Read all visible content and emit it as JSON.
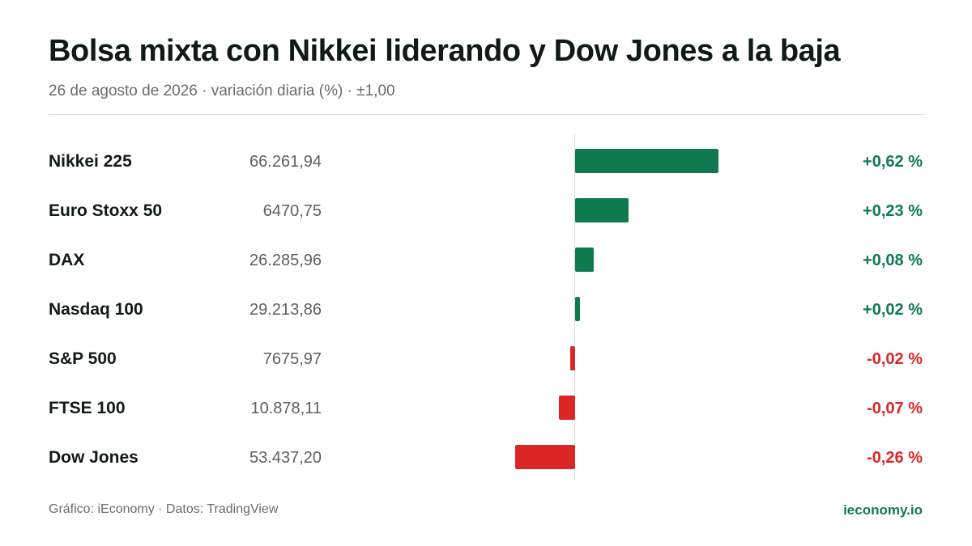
{
  "header": {
    "title": "Bolsa mixta con Nikkei liderando y Dow Jones a la baja",
    "subtitle": "26 de agosto de 2026 · variación diaria (%) · ±1,00"
  },
  "footer": {
    "source": "Gráfico: iEconomy · Datos: TradingView",
    "brand": "ieconomy.io"
  },
  "colors": {
    "positive": "#0f7a4f",
    "negative": "#dc2626",
    "brand": "#0f7a5a"
  },
  "chart_data": {
    "type": "bar",
    "orientation": "horizontal",
    "title": "Bolsa mixta con Nikkei liderando y Dow Jones a la baja",
    "subtitle": "26 de agosto de 2026 · variación diaria (%) · ±1,00",
    "xlim": [
      -1.0,
      1.0
    ],
    "grid": false,
    "categories": [
      "Nikkei 225",
      "Euro Stoxx 50",
      "DAX",
      "Nasdaq 100",
      "S&P 500",
      "FTSE 100",
      "Dow Jones"
    ],
    "prices": [
      "66.261,94",
      "6470,75",
      "26.285,96",
      "29.213,86",
      "7675,97",
      "10.878,11",
      "53.437,20"
    ],
    "values": [
      0.62,
      0.23,
      0.08,
      0.02,
      -0.02,
      -0.07,
      -0.26
    ],
    "labels": [
      "+0,62 %",
      "+0,23 %",
      "+0,08 %",
      "+0,02 %",
      "-0,02 %",
      "-0,07 %",
      "-0,26 %"
    ]
  }
}
